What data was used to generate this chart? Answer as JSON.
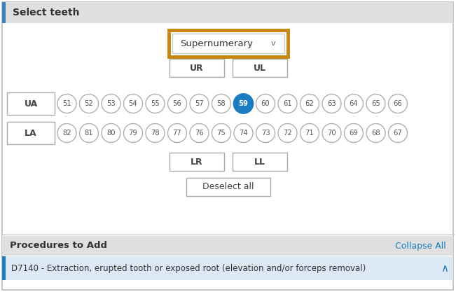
{
  "title": "Select teeth",
  "background_color": "#ffffff",
  "header_bg": "#e0e0e0",
  "header_text_color": "#333333",
  "upper_teeth": [
    51,
    52,
    53,
    54,
    55,
    56,
    57,
    58,
    59,
    60,
    61,
    62,
    63,
    64,
    65,
    66
  ],
  "lower_teeth": [
    82,
    81,
    80,
    79,
    78,
    77,
    76,
    75,
    74,
    73,
    72,
    71,
    70,
    69,
    68,
    67
  ],
  "selected_tooth": 59,
  "selected_color": "#1a7cc1",
  "selected_text_color": "#ffffff",
  "tooth_circle_color": "#ffffff",
  "tooth_circle_edge": "#b0b0b0",
  "tooth_text_color": "#555555",
  "dropdown_label": "Supernumerary",
  "dropdown_chevron": "v",
  "dropdown_highlight_color": "#c8860a",
  "dropdown_bg": "#ffffff",
  "dropdown_border": "#cccccc",
  "deselect_label": "Deselect all",
  "button_border": "#aaaaaa",
  "button_bg": "#ffffff",
  "button_text_color": "#444444",
  "bottom_section_bg": "#e0e0e0",
  "bottom_text": "Procedures to Add",
  "collapse_text": "Collapse All",
  "collapse_color": "#1a7cc1",
  "procedure_bg": "#dce9f5",
  "procedure_border": "#1a7cc1",
  "procedure_text": "D7140 - Extraction, erupted tooth or exposed root (elevation and/or forceps removal)",
  "procedure_text_color": "#333333",
  "caret_color": "#555555",
  "outer_border_color": "#bbbbbb",
  "left_accent_color": "#3a7fc1",
  "fig_width": 6.51,
  "fig_height": 4.17,
  "dpi": 100
}
